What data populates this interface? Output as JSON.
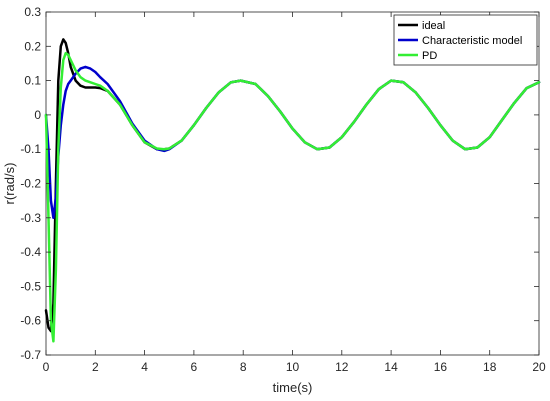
{
  "chart_data": {
    "type": "line",
    "xlabel": "time(s)",
    "ylabel": "r(rad/s)",
    "xlim": [
      0,
      20
    ],
    "ylim": [
      -0.7,
      0.3
    ],
    "xticks": [
      0,
      2,
      4,
      6,
      8,
      10,
      12,
      14,
      16,
      18,
      20
    ],
    "xtick_labels": [
      "0",
      "2",
      "4",
      "6",
      "8",
      "10",
      "12",
      "14",
      "16",
      "18",
      "20"
    ],
    "yticks": [
      0.3,
      0.2,
      0.1,
      0,
      -0.1,
      -0.2,
      -0.3,
      -0.4,
      -0.5,
      -0.6,
      -0.7
    ],
    "ytick_labels": [
      "0.3",
      "0.2",
      "0.1",
      "0",
      "-0.1",
      "-0.2",
      "-0.3",
      "-0.4",
      "-0.5",
      "-0.6",
      "-0.7"
    ],
    "grid": false,
    "legend_position": "top-right",
    "series": [
      {
        "name": "ideal",
        "color": "#000000",
        "x": [
          0,
          0.1,
          0.2,
          0.3,
          0.4,
          0.5,
          0.6,
          0.7,
          0.8,
          0.9,
          1.0,
          1.2,
          1.4,
          1.6,
          1.8,
          2.0,
          2.2,
          2.5,
          3.0,
          3.5,
          4.0,
          4.5,
          4.8,
          5.0,
          5.5,
          6.0,
          6.5,
          7.0,
          7.5,
          7.9,
          8.5,
          9.0,
          9.5,
          10.0,
          10.5,
          11.0,
          11.5,
          12.0,
          12.5,
          13.0,
          13.5,
          14.0,
          14.5,
          15.0,
          15.5,
          16.0,
          16.5,
          17.0,
          17.5,
          18.0,
          18.5,
          19.0,
          19.5,
          20.0
        ],
        "y": [
          -0.57,
          -0.62,
          -0.63,
          -0.55,
          -0.2,
          0.1,
          0.2,
          0.22,
          0.21,
          0.18,
          0.14,
          0.1,
          0.085,
          0.08,
          0.08,
          0.08,
          0.078,
          0.07,
          0.03,
          -0.03,
          -0.08,
          -0.1,
          -0.1,
          -0.098,
          -0.075,
          -0.03,
          0.02,
          0.065,
          0.095,
          0.1,
          0.09,
          0.055,
          0.01,
          -0.04,
          -0.08,
          -0.1,
          -0.095,
          -0.065,
          -0.02,
          0.03,
          0.075,
          0.1,
          0.095,
          0.065,
          0.02,
          -0.03,
          -0.075,
          -0.1,
          -0.095,
          -0.065,
          -0.015,
          0.035,
          0.078,
          0.095
        ]
      },
      {
        "name": "Characteristic model",
        "color": "#0000cc",
        "x": [
          0,
          0.1,
          0.2,
          0.3,
          0.4,
          0.5,
          0.6,
          0.7,
          0.8,
          0.9,
          1.0,
          1.2,
          1.4,
          1.6,
          1.8,
          2.0,
          2.2,
          2.5,
          3.0,
          3.5,
          4.0,
          4.5,
          4.8,
          5.0,
          5.5,
          6.0,
          6.5,
          7.0,
          7.5,
          7.9,
          8.5,
          9.0,
          9.5,
          10.0,
          10.5,
          11.0,
          11.5,
          12.0,
          12.5,
          13.0,
          13.5,
          14.0,
          14.5,
          15.0,
          15.5,
          16.0,
          16.5,
          17.0,
          17.5,
          18.0,
          18.5,
          19.0,
          19.5,
          20.0
        ],
        "y": [
          0,
          -0.1,
          -0.25,
          -0.3,
          -0.24,
          -0.12,
          -0.03,
          0.03,
          0.07,
          0.09,
          0.1,
          0.12,
          0.135,
          0.14,
          0.135,
          0.125,
          0.11,
          0.09,
          0.04,
          -0.025,
          -0.075,
          -0.1,
          -0.105,
          -0.1,
          -0.075,
          -0.03,
          0.02,
          0.065,
          0.095,
          0.1,
          0.09,
          0.055,
          0.01,
          -0.04,
          -0.08,
          -0.1,
          -0.095,
          -0.065,
          -0.02,
          0.03,
          0.075,
          0.1,
          0.095,
          0.065,
          0.02,
          -0.03,
          -0.075,
          -0.1,
          -0.095,
          -0.065,
          -0.015,
          0.035,
          0.078,
          0.095
        ]
      },
      {
        "name": "PD",
        "color": "#33ee33",
        "x": [
          0,
          0.1,
          0.2,
          0.3,
          0.4,
          0.5,
          0.6,
          0.7,
          0.8,
          0.9,
          1.0,
          1.2,
          1.4,
          1.6,
          1.8,
          2.0,
          2.2,
          2.5,
          3.0,
          3.5,
          4.0,
          4.5,
          4.8,
          5.0,
          5.5,
          6.0,
          6.5,
          7.0,
          7.5,
          7.9,
          8.5,
          9.0,
          9.5,
          10.0,
          10.5,
          11.0,
          11.5,
          12.0,
          12.5,
          13.0,
          13.5,
          14.0,
          14.5,
          15.0,
          15.5,
          16.0,
          16.5,
          17.0,
          17.5,
          18.0,
          18.5,
          19.0,
          19.5,
          20.0
        ],
        "y": [
          0,
          -0.3,
          -0.6,
          -0.66,
          -0.45,
          -0.1,
          0.08,
          0.16,
          0.18,
          0.175,
          0.16,
          0.13,
          0.11,
          0.1,
          0.095,
          0.09,
          0.085,
          0.07,
          0.03,
          -0.03,
          -0.08,
          -0.098,
          -0.1,
          -0.098,
          -0.075,
          -0.03,
          0.02,
          0.065,
          0.095,
          0.1,
          0.09,
          0.055,
          0.01,
          -0.04,
          -0.08,
          -0.1,
          -0.095,
          -0.065,
          -0.02,
          0.03,
          0.075,
          0.1,
          0.095,
          0.065,
          0.02,
          -0.03,
          -0.075,
          -0.1,
          -0.095,
          -0.065,
          -0.015,
          0.035,
          0.078,
          0.095
        ]
      }
    ]
  }
}
